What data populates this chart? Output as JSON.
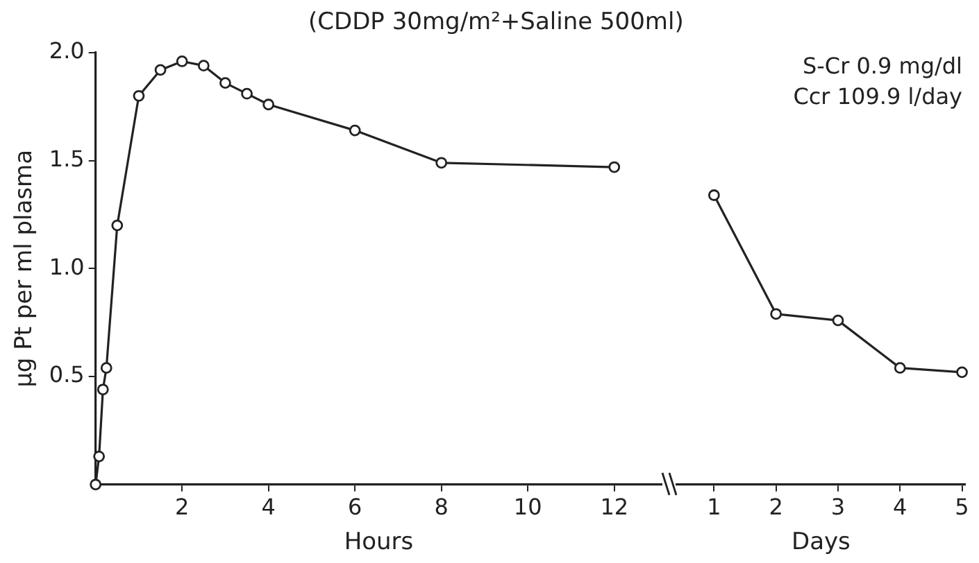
{
  "chart_data": [
    {
      "type": "line",
      "title": "(CDDP 30mg/m²+Saline 500ml)",
      "xlabel": "Hours",
      "ylabel": "μg Pt per ml plasma",
      "x": [
        0,
        0.08,
        0.17,
        0.25,
        0.5,
        1,
        1.5,
        2,
        2.5,
        3,
        3.5,
        4,
        6,
        8,
        12
      ],
      "series": [
        {
          "color": "#222222",
          "values": [
            0,
            0.13,
            0.44,
            0.54,
            1.2,
            1.8,
            1.92,
            1.96,
            1.94,
            1.86,
            1.81,
            1.76,
            1.64,
            1.49,
            1.47
          ]
        }
      ],
      "xlim": [
        0,
        13.1
      ],
      "xticks": [
        2,
        4,
        6,
        8,
        10,
        12
      ],
      "ylim": [
        0,
        2
      ],
      "yticks": [
        {
          "value": 0.5,
          "label": "0.5"
        },
        {
          "value": 1,
          "label": "1.0"
        },
        {
          "value": 1.5,
          "label": "1.5"
        },
        {
          "value": 2,
          "label": "2.0"
        }
      ],
      "marker": "circle",
      "grid": false,
      "legend": false
    },
    {
      "type": "line",
      "xlabel": "Days",
      "annotations": [
        "S-Cr  0.9 mg/dl",
        "Ccr  109.9 l/day"
      ],
      "x": [
        1,
        2,
        3,
        4,
        5
      ],
      "series": [
        {
          "color": "#222222",
          "values": [
            1.34,
            0.79,
            0.76,
            0.54,
            0.52
          ]
        }
      ],
      "xlim": [
        0.4,
        5.05
      ],
      "xticks": [
        1,
        2,
        3,
        4,
        5
      ],
      "ylim": [
        0,
        2
      ],
      "tick_labels": "x",
      "marker": "circle",
      "grid": false,
      "legend": false
    }
  ]
}
